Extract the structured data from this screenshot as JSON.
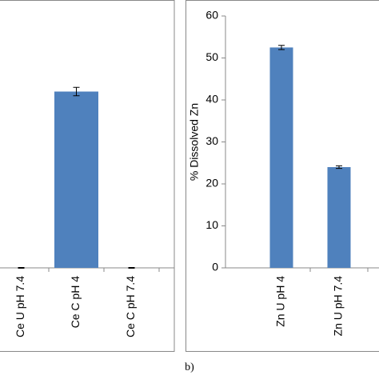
{
  "chart_data": [
    {
      "type": "bar",
      "categories": [
        "Ce U pH 7.4",
        "Ce C pH 4",
        "Ce C pH 7.4"
      ],
      "values": [
        0,
        42,
        0
      ],
      "errors": [
        0.1,
        1,
        0.1
      ],
      "color": "#4f81bd",
      "ylim": [
        0,
        60
      ]
    },
    {
      "type": "bar",
      "y_label": "% Dissolved Zn",
      "categories": [
        "Zn U pH 4",
        "Zn U pH 7.4"
      ],
      "values": [
        52.5,
        24
      ],
      "errors": [
        0.5,
        0.3
      ],
      "color": "#4f81bd",
      "ylim": [
        0,
        60
      ],
      "yticks": [
        0,
        10,
        20,
        30,
        40,
        50,
        60
      ]
    }
  ],
  "caption": "b)"
}
